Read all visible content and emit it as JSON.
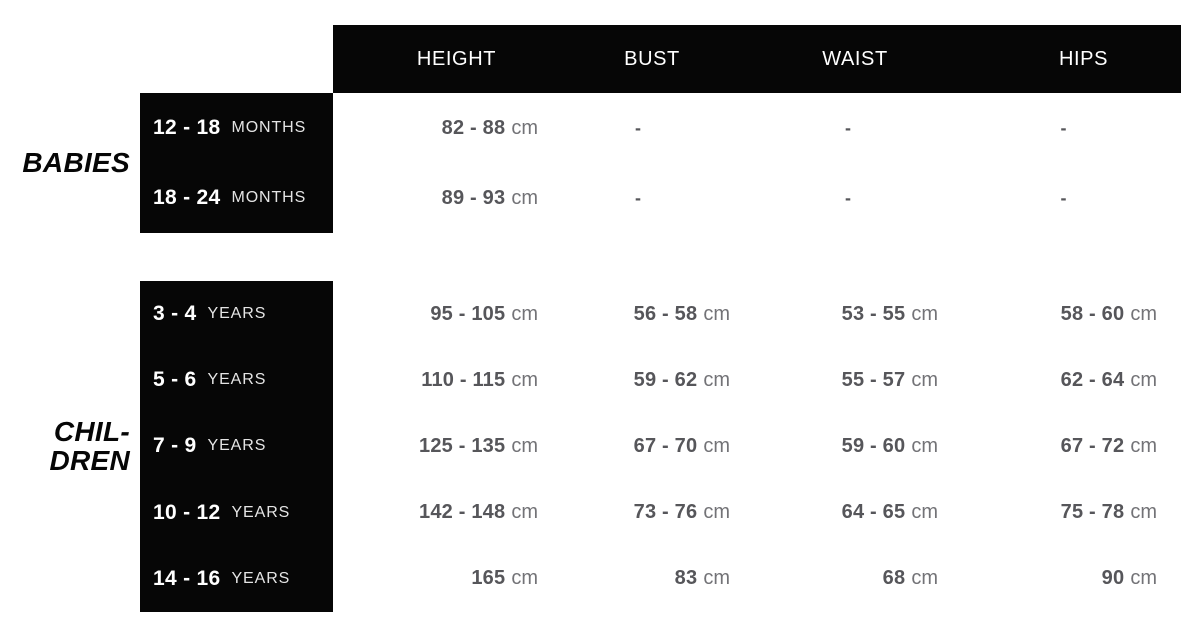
{
  "colors": {
    "black": "#060606",
    "white": "#ffffff",
    "value": "#56565a",
    "unit": "#737377",
    "unit_label": "#e4e4e4"
  },
  "chart_data": {
    "type": "table",
    "columns": [
      "HEIGHT",
      "BUST",
      "WAIST",
      "HIPS"
    ],
    "measurement_unit": "cm",
    "sections": [
      {
        "id": "babies",
        "label_lines": [
          "BABIES"
        ],
        "rows": [
          {
            "age": "12 - 18",
            "age_unit": "MONTHS",
            "cells": [
              {
                "value": "82 - 88",
                "unit": "cm"
              },
              {
                "dash": "-"
              },
              {
                "dash": "-"
              },
              {
                "dash": "-"
              }
            ]
          },
          {
            "age": "18 - 24",
            "age_unit": "MONTHS",
            "cells": [
              {
                "value": "89 - 93",
                "unit": "cm"
              },
              {
                "dash": "-"
              },
              {
                "dash": "-"
              },
              {
                "dash": "-"
              }
            ]
          }
        ]
      },
      {
        "id": "children",
        "label_lines": [
          "CHIL-",
          "DREN"
        ],
        "rows": [
          {
            "age": "3 - 4",
            "age_unit": "YEARS",
            "cells": [
              {
                "value": "95 - 105",
                "unit": "cm"
              },
              {
                "value": "56 - 58",
                "unit": "cm"
              },
              {
                "value": "53 - 55",
                "unit": "cm"
              },
              {
                "value": "58 - 60",
                "unit": "cm"
              }
            ]
          },
          {
            "age": "5 - 6",
            "age_unit": "YEARS",
            "cells": [
              {
                "value": "110 - 115",
                "unit": "cm"
              },
              {
                "value": "59 - 62",
                "unit": "cm"
              },
              {
                "value": "55 - 57",
                "unit": "cm"
              },
              {
                "value": "62 - 64",
                "unit": "cm"
              }
            ]
          },
          {
            "age": "7 - 9",
            "age_unit": "YEARS",
            "cells": [
              {
                "value": "125 - 135",
                "unit": "cm"
              },
              {
                "value": "67 - 70",
                "unit": "cm"
              },
              {
                "value": "59 - 60",
                "unit": "cm"
              },
              {
                "value": "67 - 72",
                "unit": "cm"
              }
            ]
          },
          {
            "age": "10 - 12",
            "age_unit": "YEARS",
            "cells": [
              {
                "value": "142 - 148",
                "unit": "cm"
              },
              {
                "value": "73 - 76",
                "unit": "cm"
              },
              {
                "value": "64 - 65",
                "unit": "cm"
              },
              {
                "value": "75 - 78",
                "unit": "cm"
              }
            ]
          },
          {
            "age": "14 - 16",
            "age_unit": "YEARS",
            "cells": [
              {
                "value": "165",
                "unit": "cm"
              },
              {
                "value": "83",
                "unit": "cm"
              },
              {
                "value": "68",
                "unit": "cm"
              },
              {
                "value": "90",
                "unit": "cm"
              }
            ]
          }
        ]
      }
    ]
  }
}
